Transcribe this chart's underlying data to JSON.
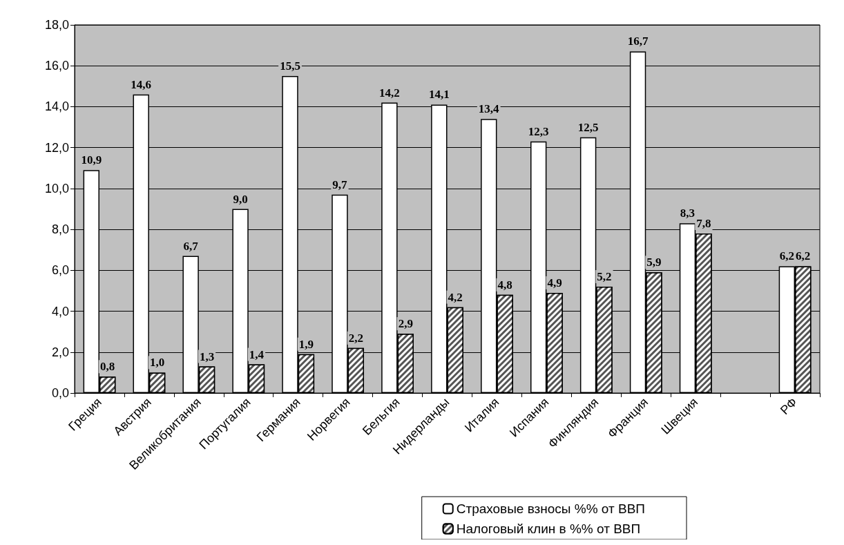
{
  "chart_data": {
    "type": "bar",
    "categories": [
      "Греция",
      "Австрия",
      "Великобритания",
      "Португалия",
      "Германия",
      "Норвегия",
      "Бельгия",
      "Нидерланды",
      "Италия",
      "Испания",
      "Финляндия",
      "Франция",
      "Швеция",
      null,
      "РФ"
    ],
    "series": [
      {
        "name": "Страховые взносы %% от ВВП",
        "color": "#ffffff",
        "values": [
          10.9,
          14.6,
          6.7,
          9.0,
          15.5,
          9.7,
          14.2,
          14.1,
          13.4,
          12.3,
          12.5,
          16.7,
          8.3,
          null,
          6.2
        ],
        "value_labels": [
          "10,9",
          "14,6",
          "6,7",
          "9,0",
          "15,5",
          "9,7",
          "14,2",
          "14,1",
          "13,4",
          "12,3",
          "12,5",
          "16,7",
          "8,3",
          null,
          "6,2"
        ]
      },
      {
        "name": "Налоговый клин в %% от ВВП",
        "color": "#555555",
        "values": [
          0.8,
          1.0,
          1.3,
          1.4,
          1.9,
          2.2,
          2.9,
          4.2,
          4.8,
          4.9,
          5.2,
          5.9,
          7.8,
          null,
          6.2
        ],
        "value_labels": [
          "0,8",
          "1,0",
          "1,3",
          "1,4",
          "1,9",
          "2,2",
          "2,9",
          "4,2",
          "4,8",
          "4,9",
          "5,2",
          "5,9",
          "7,8",
          null,
          "6,2"
        ]
      }
    ],
    "ylim": [
      0,
      18
    ],
    "yticks": [
      {
        "value": 0,
        "label": "0,0"
      },
      {
        "value": 2,
        "label": "2,0"
      },
      {
        "value": 4,
        "label": "4,0"
      },
      {
        "value": 6,
        "label": "6,0"
      },
      {
        "value": 8,
        "label": "8,0"
      },
      {
        "value": 10,
        "label": "10,0"
      },
      {
        "value": 12,
        "label": "12,0"
      },
      {
        "value": 14,
        "label": "14,0"
      },
      {
        "value": 16,
        "label": "16,0"
      },
      {
        "value": 18,
        "label": "18,0"
      }
    ],
    "grid": "y",
    "legend": "bottom right"
  }
}
